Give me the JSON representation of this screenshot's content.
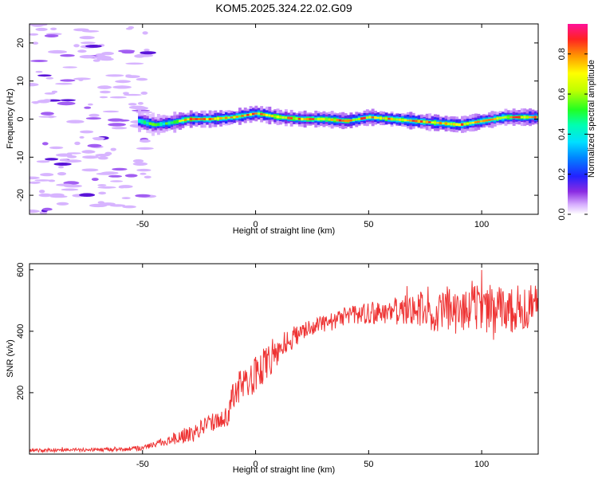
{
  "title": "KOM5.2025.324.22.02.G09",
  "chart_data": [
    {
      "type": "heatmap",
      "name": "spectrogram",
      "xlabel": "Height of straight line (km)",
      "ylabel": "Frequency (Hz)",
      "xlim": [
        -100,
        125
      ],
      "ylim": [
        -25,
        25
      ],
      "x_ticks": [
        -50,
        0,
        50,
        100
      ],
      "y_ticks": [
        -20,
        -10,
        0,
        10,
        20
      ],
      "colorbar": {
        "label": "Normalized spectral amplitude",
        "range": [
          0,
          0.95
        ],
        "ticks": [
          0.0,
          0.2,
          0.4,
          0.6,
          0.8
        ]
      },
      "ridge": {
        "x": [
          -52,
          -45,
          -38,
          -30,
          -20,
          -10,
          0,
          10,
          20,
          30,
          40,
          50,
          60,
          70,
          80,
          90,
          100,
          110,
          125
        ],
        "freq": [
          -0.5,
          -1.5,
          -1,
          0,
          0,
          0.5,
          1.5,
          0.5,
          0,
          0,
          -0.5,
          0.5,
          0,
          -0.5,
          -1,
          -1.5,
          -0.5,
          0.5,
          0.5
        ]
      },
      "noise_region_x": [
        -100,
        -50
      ]
    },
    {
      "type": "line",
      "name": "snr",
      "xlabel": "Height of straight line (km)",
      "ylabel": "SNR (v/v)",
      "xlim": [
        -100,
        125
      ],
      "ylim": [
        0,
        620
      ],
      "x_ticks": [
        -50,
        0,
        50,
        100
      ],
      "y_ticks": [
        200,
        400,
        600
      ],
      "color": "#ee3333",
      "envelope": {
        "x": [
          -100,
          -60,
          -50,
          -40,
          -30,
          -20,
          -12,
          -10,
          -5,
          0,
          5,
          10,
          15,
          20,
          30,
          40,
          50,
          60,
          70,
          80,
          90,
          100,
          110,
          125
        ],
        "mean": [
          12,
          15,
          20,
          40,
          65,
          100,
          125,
          200,
          230,
          260,
          300,
          340,
          370,
          395,
          425,
          450,
          460,
          465,
          470,
          475,
          475,
          478,
          475,
          480
        ],
        "spread": [
          6,
          6,
          8,
          15,
          25,
          30,
          35,
          50,
          55,
          60,
          55,
          50,
          40,
          30,
          30,
          30,
          35,
          40,
          60,
          80,
          90,
          90,
          85,
          70
        ]
      }
    }
  ]
}
